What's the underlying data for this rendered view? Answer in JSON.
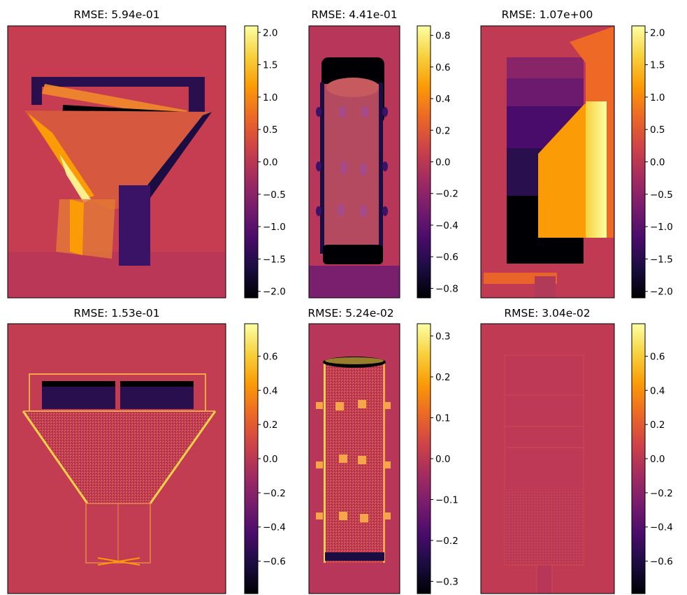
{
  "colors": {
    "colormap": "inferno",
    "inferno_stops": [
      "#000004",
      "#1b0c41",
      "#4a0c6b",
      "#781c6d",
      "#a52c60",
      "#cf4446",
      "#ed6925",
      "#fb9b06",
      "#f7d13d",
      "#fcffa4"
    ],
    "frame": "#000000",
    "background": "#ffffff"
  },
  "chart_data": [
    {
      "type": "heatmap",
      "title": "RMSE: 5.94e-01",
      "colorbar": {
        "vmin": -2.1,
        "vmax": 2.1,
        "ticks": [
          2.0,
          1.5,
          1.0,
          0.5,
          0.0,
          -0.5,
          -1.0,
          -1.5,
          -2.0
        ],
        "tick_labels": [
          "2.0",
          "1.5",
          "1.0",
          "0.5",
          "0.0",
          "−0.5",
          "−1.0",
          "−1.5",
          "−2.0"
        ]
      }
    },
    {
      "type": "heatmap",
      "title": "RMSE: 4.41e-01",
      "colorbar": {
        "vmin": -0.86,
        "vmax": 0.86,
        "ticks": [
          0.8,
          0.6,
          0.4,
          0.2,
          0.0,
          -0.2,
          -0.4,
          -0.6,
          -0.8
        ],
        "tick_labels": [
          "0.8",
          "0.6",
          "0.4",
          "0.2",
          "0.0",
          "−0.2",
          "−0.4",
          "−0.6",
          "−0.8"
        ]
      }
    },
    {
      "type": "heatmap",
      "title": "RMSE: 1.07e+00",
      "colorbar": {
        "vmin": -2.1,
        "vmax": 2.1,
        "ticks": [
          2.0,
          1.5,
          1.0,
          0.5,
          0.0,
          -0.5,
          -1.0,
          -1.5,
          -2.0
        ],
        "tick_labels": [
          "2.0",
          "1.5",
          "1.0",
          "0.5",
          "0.0",
          "−0.5",
          "−1.0",
          "−1.5",
          "−2.0"
        ]
      }
    },
    {
      "type": "heatmap",
      "title": "RMSE: 1.53e-01",
      "colorbar": {
        "vmin": -0.79,
        "vmax": 0.79,
        "ticks": [
          0.6,
          0.4,
          0.2,
          0.0,
          -0.2,
          -0.4,
          -0.6
        ],
        "tick_labels": [
          "0.6",
          "0.4",
          "0.2",
          "0.0",
          "−0.2",
          "−0.4",
          "−0.6"
        ]
      }
    },
    {
      "type": "heatmap",
      "title": "RMSE: 5.24e-02",
      "colorbar": {
        "vmin": -0.33,
        "vmax": 0.33,
        "ticks": [
          0.3,
          0.2,
          0.1,
          0.0,
          -0.1,
          -0.2,
          -0.3
        ],
        "tick_labels": [
          "0.3",
          "0.2",
          "0.1",
          "0.0",
          "−0.1",
          "−0.2",
          "−0.3"
        ]
      }
    },
    {
      "type": "heatmap",
      "title": "RMSE: 3.04e-02",
      "colorbar": {
        "vmin": -0.79,
        "vmax": 0.79,
        "ticks": [
          0.6,
          0.4,
          0.2,
          0.0,
          -0.2,
          -0.4,
          -0.6
        ],
        "tick_labels": [
          "0.6",
          "0.4",
          "0.2",
          "0.0",
          "−0.2",
          "−0.4",
          "−0.6"
        ]
      }
    }
  ]
}
